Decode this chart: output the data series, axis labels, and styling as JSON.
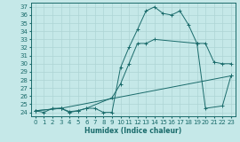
{
  "xlabel": "Humidex (Indice chaleur)",
  "xlim": [
    -0.5,
    23.5
  ],
  "ylim": [
    23.5,
    37.5
  ],
  "yticks": [
    24,
    25,
    26,
    27,
    28,
    29,
    30,
    31,
    32,
    33,
    34,
    35,
    36,
    37
  ],
  "xticks": [
    0,
    1,
    2,
    3,
    4,
    5,
    6,
    7,
    8,
    9,
    10,
    11,
    12,
    13,
    14,
    15,
    16,
    17,
    18,
    19,
    20,
    21,
    22,
    23
  ],
  "bg_color": "#c5e8e8",
  "line_color": "#1a6b6b",
  "grid_color": "#aed4d4",
  "lines": [
    {
      "x": [
        0,
        1,
        2,
        3,
        4,
        5,
        6,
        7,
        8,
        9,
        10,
        11,
        12,
        13,
        14,
        15,
        16,
        17,
        18,
        19,
        20,
        21,
        22,
        23
      ],
      "y": [
        24.2,
        24.0,
        24.5,
        24.5,
        24.1,
        24.2,
        24.5,
        24.5,
        24.0,
        24.0,
        29.5,
        32.0,
        34.2,
        36.5,
        37.0,
        36.2,
        36.0,
        36.5,
        34.8,
        32.5,
        32.5,
        30.2,
        30.0,
        30.0
      ]
    },
    {
      "x": [
        0,
        3,
        4,
        5,
        6,
        9,
        10,
        11,
        12,
        13,
        14,
        19,
        20,
        22,
        23
      ],
      "y": [
        24.2,
        24.5,
        24.0,
        24.2,
        24.5,
        25.8,
        27.5,
        30.0,
        32.5,
        32.5,
        33.0,
        32.5,
        24.5,
        24.8,
        28.5
      ]
    },
    {
      "x": [
        0,
        3,
        23
      ],
      "y": [
        24.2,
        24.5,
        28.5
      ]
    }
  ]
}
